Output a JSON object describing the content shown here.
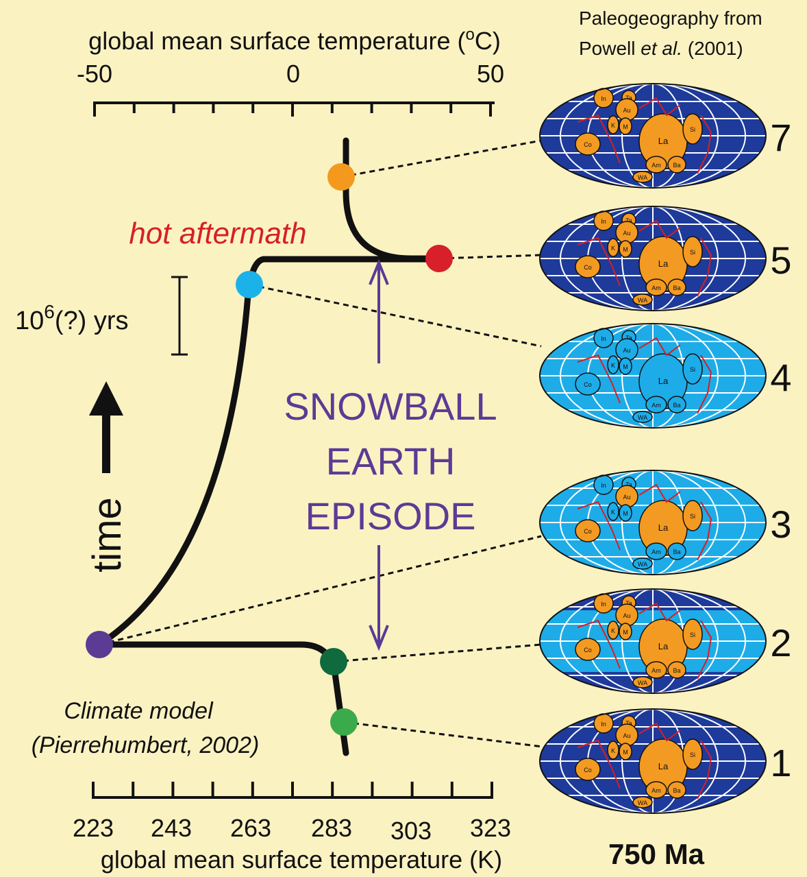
{
  "top_axis": {
    "title_main": "global mean surface temperature (",
    "title_sup": "o",
    "title_end": "C)",
    "ticks": [
      "-50",
      "0",
      "50"
    ]
  },
  "bottom_axis": {
    "title": "global mean surface temperature (K)",
    "ticks": [
      "223",
      "243",
      "263",
      "283",
      "303",
      "323"
    ]
  },
  "source": {
    "line1": "Paleogeography from",
    "line2_author": "Powell ",
    "line2_etal": "et al.",
    "line2_year": " (2001)"
  },
  "hot_aftermath": "hot aftermath",
  "scale_bar": {
    "base": "10",
    "exponent": "6",
    "rest": "(?) yrs"
  },
  "time": "time",
  "snowball": [
    "SNOWBALL",
    "EARTH",
    "EPISODE"
  ],
  "climate_model": [
    "Climate model",
    "(Pierrehumbert, 2002)"
  ],
  "maps": [
    {
      "number": "7"
    },
    {
      "number": "5"
    },
    {
      "number": "4"
    },
    {
      "number": "3"
    },
    {
      "number": "2"
    },
    {
      "number": "1"
    }
  ],
  "continent_labels": [
    "In",
    "Ta",
    "Au",
    "K",
    "M",
    "Co",
    "La",
    "Si",
    "Am",
    "Ba",
    "WA"
  ],
  "age": "750 Ma"
}
